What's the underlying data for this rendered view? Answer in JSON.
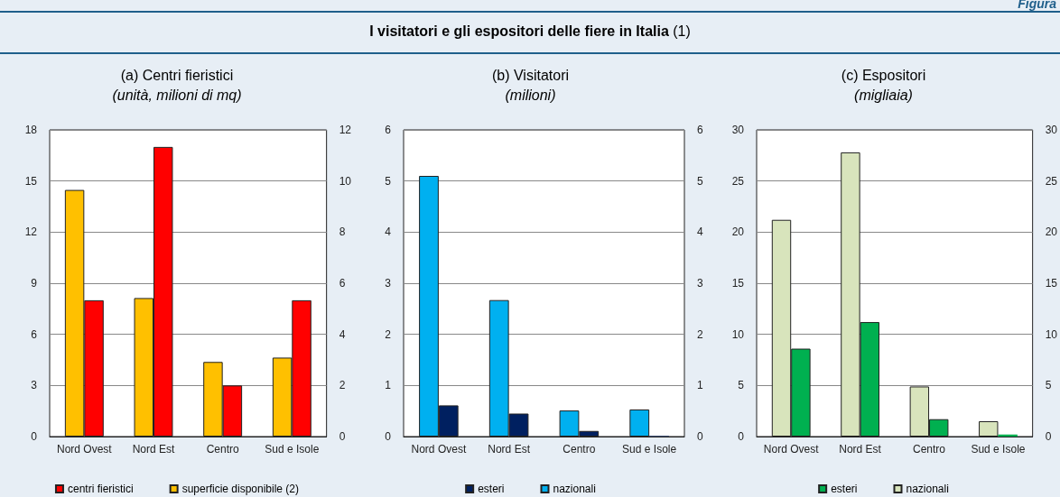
{
  "chart_data": [
    {
      "type": "bar",
      "title": "(a) Centri fieristici",
      "subtitle": "(unità, milioni di mq)",
      "annotations": [
        "Figura",
        "I visitatori e gli espositori delle fiere in Italia (1)"
      ],
      "categories": [
        "Nord Ovest",
        "Nord Est",
        "Centro",
        "Sud e Isole"
      ],
      "series": [
        {
          "name": "superficie disponibile (2)",
          "color": "#ffc000",
          "axis": "y2",
          "values": [
            9.65,
            5.42,
            2.92,
            3.09
          ]
        },
        {
          "name": "centri fieristici",
          "color": "#ff0000",
          "values": [
            8,
            17,
            3,
            8
          ]
        }
      ],
      "ylim": [
        0,
        18
      ],
      "yticks": [
        0,
        3,
        6,
        9,
        12,
        15,
        18
      ],
      "y2lim": [
        0,
        12
      ],
      "y2ticks": [
        0,
        2,
        4,
        6,
        8,
        10,
        12
      ],
      "grid": "y",
      "legend": "bottom"
    },
    {
      "type": "bar",
      "title": "(b) Visitatori",
      "subtitle": "(milioni)",
      "categories": [
        "Nord Ovest",
        "Nord Est",
        "Centro",
        "Sud e Isole"
      ],
      "series": [
        {
          "name": "nazionali",
          "color": "#00b0f0",
          "values": [
            5.1,
            2.67,
            0.51,
            0.53
          ]
        },
        {
          "name": "esteri",
          "color": "#002060",
          "values": [
            0.61,
            0.45,
            0.11,
            0.01
          ]
        }
      ],
      "ylim": [
        0,
        6
      ],
      "yticks": [
        0,
        1,
        2,
        3,
        4,
        5,
        6
      ],
      "y2lim": [
        0,
        6
      ],
      "y2ticks": [
        0,
        1,
        2,
        3,
        4,
        5,
        6
      ],
      "grid": "y",
      "legend": "bottom"
    },
    {
      "type": "bar",
      "title": "(c) Espositori",
      "subtitle": "(migliaia)",
      "categories": [
        "Nord Ovest",
        "Nord Est",
        "Centro",
        "Sud e Isole"
      ],
      "series": [
        {
          "name": "nazionali",
          "color": "#d8e4bc",
          "values": [
            21.2,
            27.8,
            4.9,
            1.5
          ]
        },
        {
          "name": "esteri",
          "color": "#00b050",
          "values": [
            8.6,
            11.2,
            1.7,
            0.2
          ]
        }
      ],
      "ylim": [
        0,
        30
      ],
      "yticks": [
        0,
        5,
        10,
        15,
        20,
        25,
        30
      ],
      "y2lim": [
        0,
        30
      ],
      "y2ticks": [
        0,
        5,
        10,
        15,
        20,
        25,
        30
      ],
      "grid": "y",
      "legend": "bottom"
    }
  ]
}
